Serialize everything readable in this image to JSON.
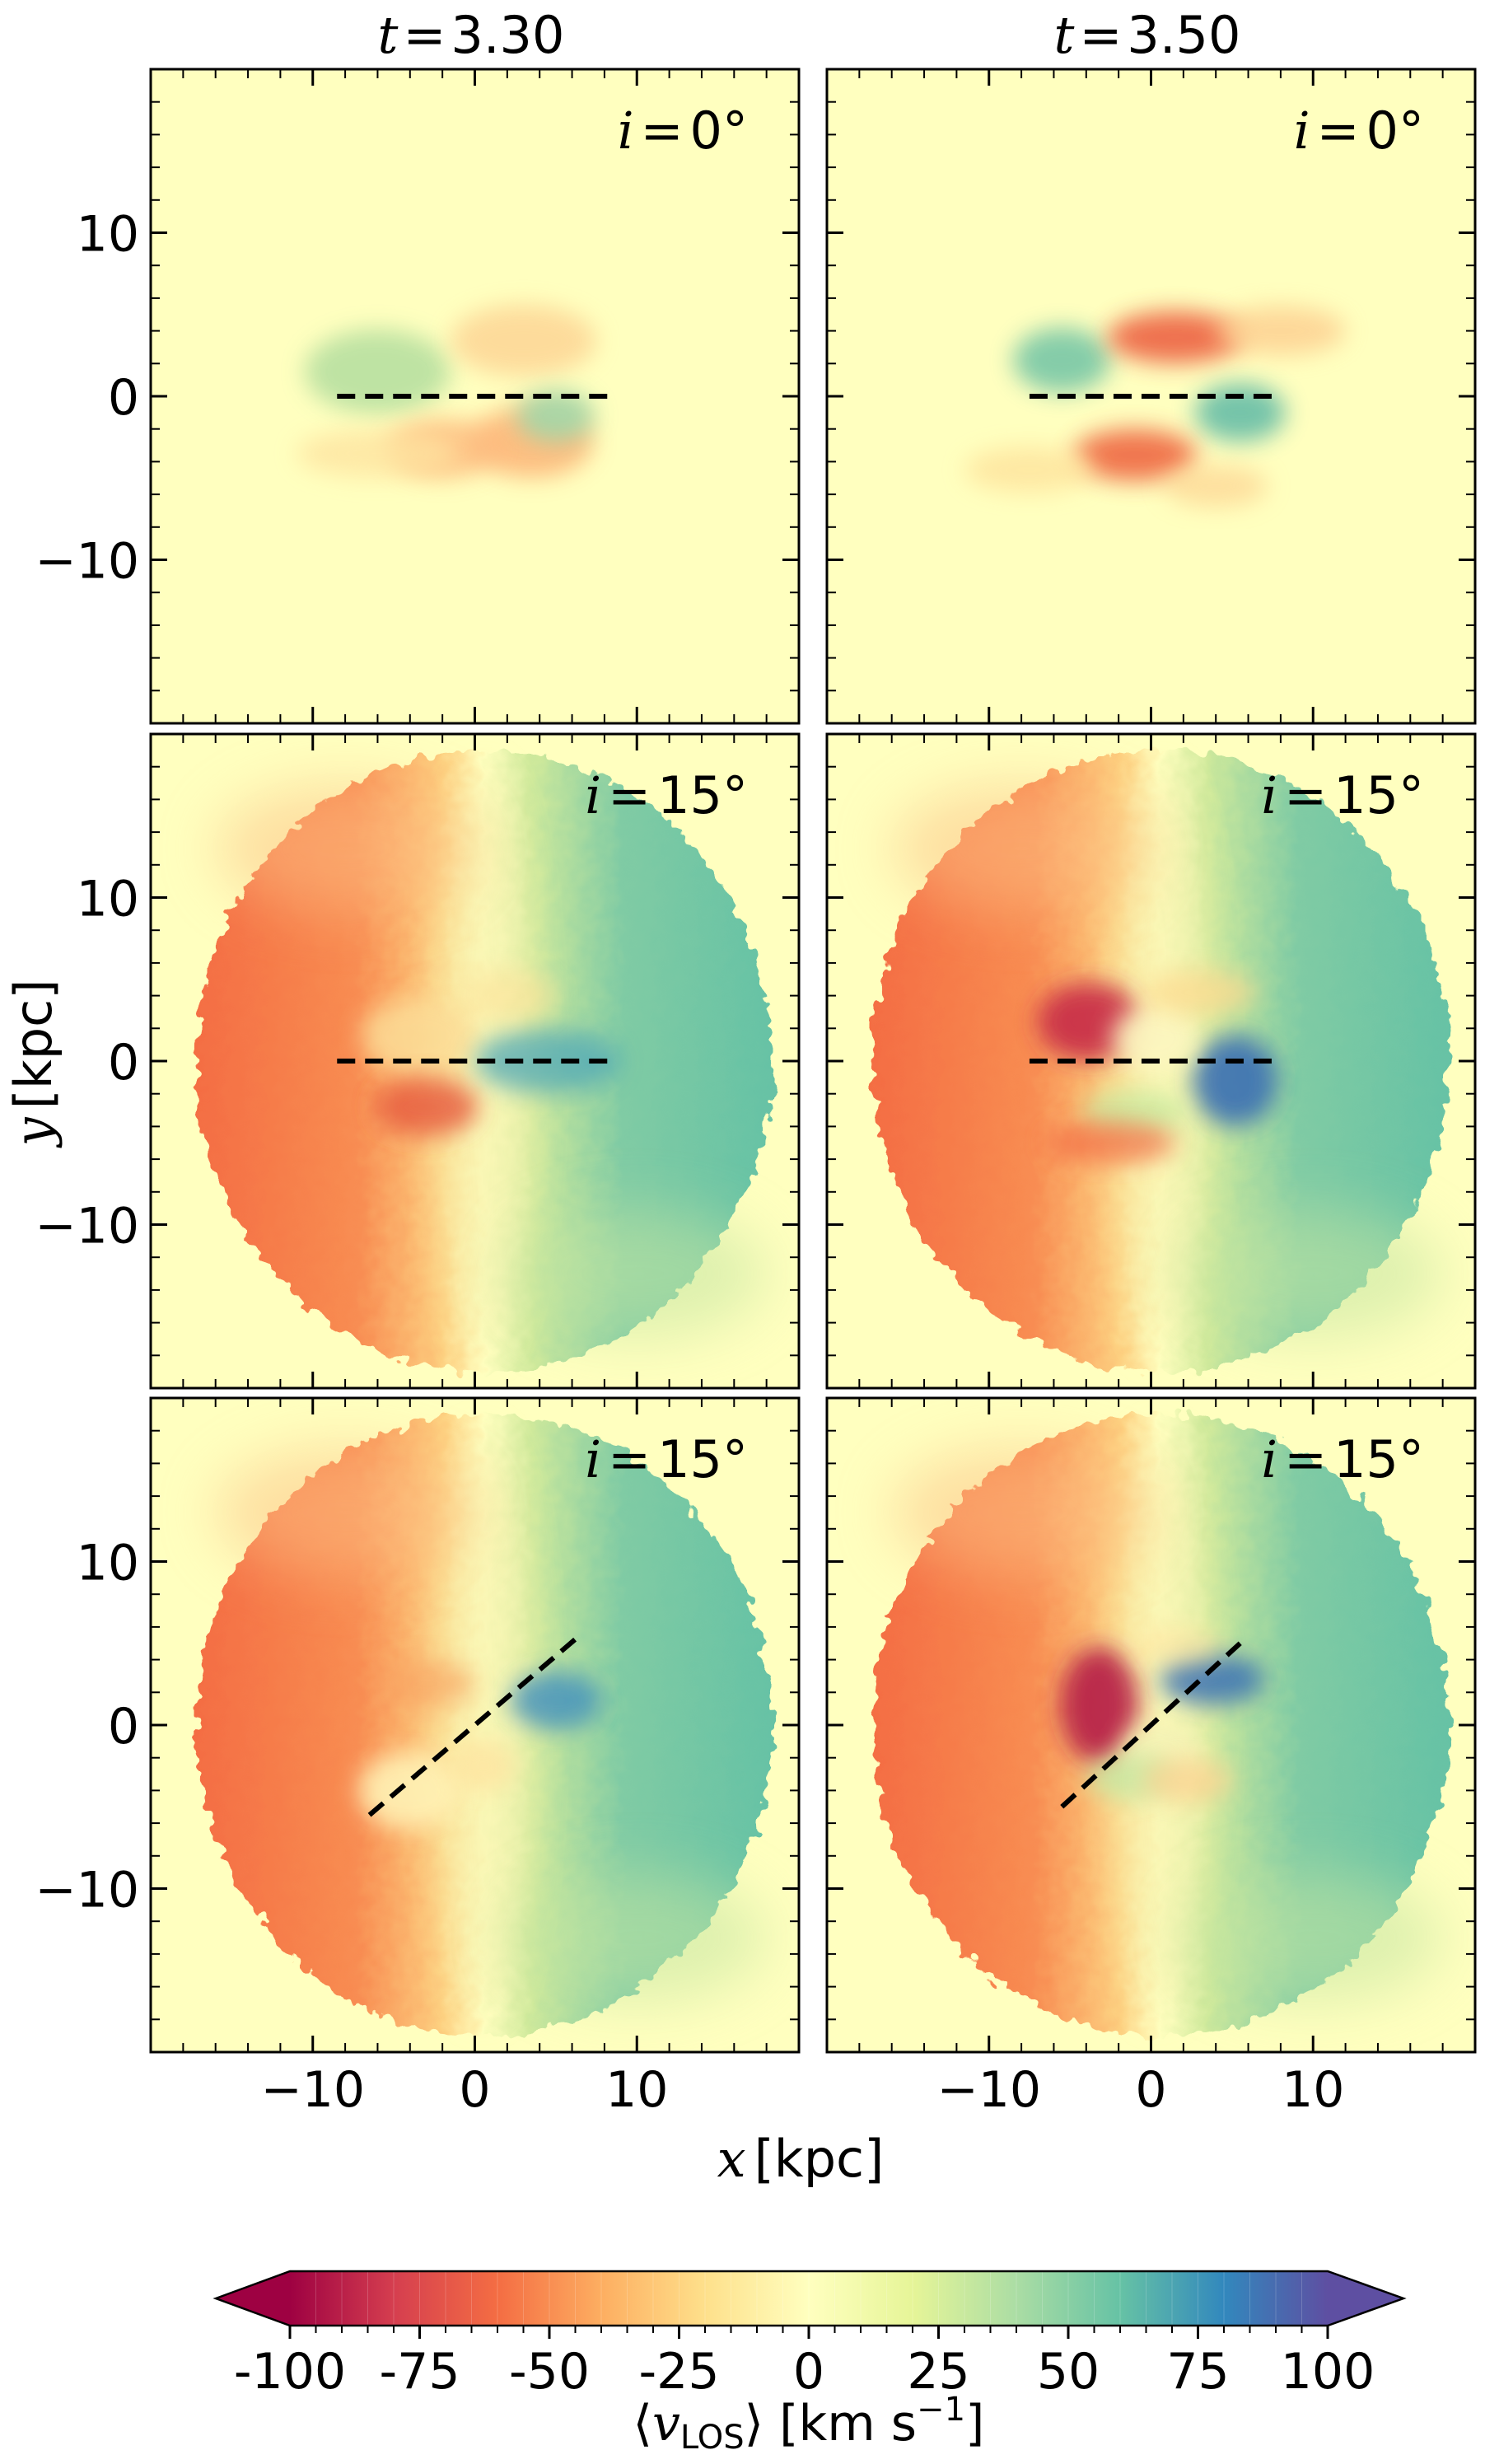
{
  "figure": {
    "xlabel_var": "x",
    "xlabel_unit": "[kpc]",
    "ylabel_var": "y",
    "ylabel_unit": "[kpc]"
  },
  "colorbar": {
    "colormap": "Spectral (diverging)",
    "extend": "both",
    "label": "⟨v_LOS⟩ [km s⁻¹]",
    "label_parts": {
      "open": "⟨",
      "var": "v",
      "sub": "LOS",
      "close": "⟩",
      "unit": " [km s",
      "exp": "−1",
      "unit_close": "]"
    },
    "range": [
      -100,
      100
    ],
    "ticks": [
      -100,
      -75,
      -50,
      -25,
      0,
      25,
      50,
      75,
      100
    ],
    "tick_labels": [
      "-100",
      "-75",
      "-50",
      "-25",
      "0",
      "25",
      "50",
      "75",
      "100"
    ],
    "n_levels": 40,
    "colors": [
      "#9e0142",
      "#d53e4f",
      "#f46d43",
      "#fdae61",
      "#fee08b",
      "#ffffbf",
      "#e6f598",
      "#abdda4",
      "#66c2a5",
      "#3288bd",
      "#5e4fa2"
    ]
  },
  "chart_data": [
    {
      "type": "heatmap",
      "row": 0,
      "col": 0,
      "title": "t = 3.30",
      "annotation": "i = 0°",
      "xlim": [
        -20,
        20
      ],
      "ylim": [
        -20,
        20
      ],
      "xticks": [
        -10,
        0,
        10
      ],
      "yticks": [
        -10,
        0,
        10
      ],
      "slit": {
        "x": [
          -8.5,
          8.5
        ],
        "y": [
          0,
          0
        ]
      },
      "map": "weak quadrupole, |v| ≲ 30 km/s"
    },
    {
      "type": "heatmap",
      "row": 0,
      "col": 1,
      "title": "t = 3.50",
      "annotation": "i = 0°",
      "xlim": [
        -20,
        20
      ],
      "ylim": [
        -20,
        20
      ],
      "xticks": [
        -10,
        0,
        10
      ],
      "yticks": [
        -10,
        0,
        10
      ],
      "slit": {
        "x": [
          -7.5,
          7.5
        ],
        "y": [
          0,
          0
        ]
      },
      "map": "four-armed spiral quadrupole, |v| ≲ 60 km/s"
    },
    {
      "type": "heatmap",
      "row": 1,
      "col": 0,
      "title": "",
      "annotation": "i = 15°",
      "xlim": [
        -20,
        20
      ],
      "ylim": [
        -20,
        20
      ],
      "xticks": [
        -10,
        0,
        10
      ],
      "yticks": [
        -10,
        0,
        10
      ],
      "slit": {
        "x": [
          -8.5,
          8.5
        ],
        "y": [
          0,
          0
        ]
      },
      "map": "rotating disc, left −60, right +60 km/s"
    },
    {
      "type": "heatmap",
      "row": 1,
      "col": 1,
      "title": "",
      "annotation": "i = 15°",
      "xlim": [
        -20,
        20
      ],
      "ylim": [
        -20,
        20
      ],
      "xticks": [
        -10,
        0,
        10
      ],
      "yticks": [
        -10,
        0,
        10
      ],
      "slit": {
        "x": [
          -7.5,
          7.5
        ],
        "y": [
          0,
          0
        ]
      },
      "map": "rotating disc with inner bar twist, peak ±80 km/s"
    },
    {
      "type": "heatmap",
      "row": 2,
      "col": 0,
      "title": "",
      "annotation": "i = 15°",
      "xlim": [
        -20,
        20
      ],
      "ylim": [
        -20,
        20
      ],
      "xticks": [
        -10,
        0,
        10
      ],
      "yticks": [
        -10,
        0,
        10
      ],
      "slit": {
        "x": [
          -6.5,
          6.5
        ],
        "y": [
          -5.5,
          5.5
        ]
      },
      "map": "rotating disc, diagonal slit"
    },
    {
      "type": "heatmap",
      "row": 2,
      "col": 1,
      "title": "",
      "annotation": "i = 15°",
      "xlim": [
        -20,
        20
      ],
      "ylim": [
        -20,
        20
      ],
      "xticks": [
        -10,
        0,
        10
      ],
      "yticks": [
        -10,
        0,
        10
      ],
      "slit": {
        "x": [
          -5.5,
          5.5
        ],
        "y": [
          -5,
          5
        ]
      },
      "map": "rotating disc with bar twist, diagonal slit"
    }
  ]
}
